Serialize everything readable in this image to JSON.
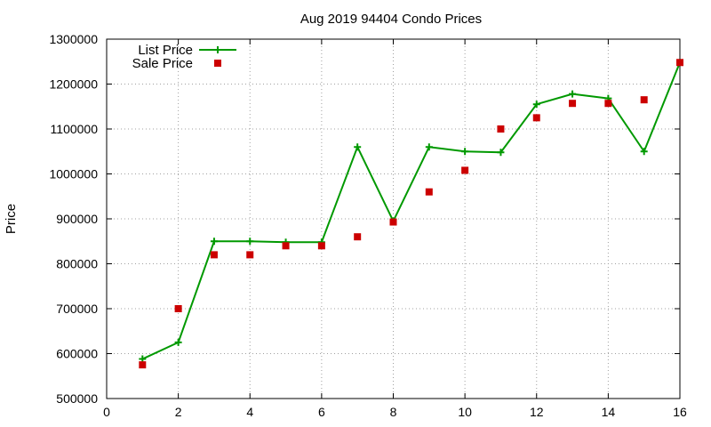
{
  "chart_data": {
    "type": "line",
    "title": "Aug 2019 94404 Condo Prices",
    "xlabel": "",
    "ylabel": "Price",
    "xlim": [
      0,
      16
    ],
    "ylim": [
      500000,
      1300000
    ],
    "xticks": [
      0,
      2,
      4,
      6,
      8,
      10,
      12,
      14,
      16
    ],
    "yticks": [
      500000,
      600000,
      700000,
      800000,
      900000,
      1000000,
      1100000,
      1200000,
      1300000
    ],
    "grid": true,
    "legend_position": "top-left",
    "series": [
      {
        "name": "List Price",
        "style": "line with plus markers",
        "color": "#009900",
        "x": [
          1,
          2,
          3,
          4,
          5,
          6,
          7,
          8,
          9,
          10,
          11,
          12,
          13,
          14,
          15,
          16
        ],
        "values": [
          588000,
          625000,
          850000,
          850000,
          848000,
          848000,
          1060000,
          895000,
          1060000,
          1050000,
          1048000,
          1155000,
          1178000,
          1168000,
          1050000,
          1248000
        ]
      },
      {
        "name": "Sale Price",
        "style": "square markers",
        "color": "#cc0000",
        "x": [
          1,
          2,
          3,
          4,
          5,
          6,
          7,
          8,
          9,
          10,
          11,
          12,
          13,
          14,
          15,
          16
        ],
        "values": [
          575000,
          700000,
          820000,
          820000,
          840000,
          840000,
          860000,
          893000,
          960000,
          1008000,
          1100000,
          1125000,
          1157000,
          1157000,
          1165000,
          1248000
        ]
      }
    ]
  }
}
